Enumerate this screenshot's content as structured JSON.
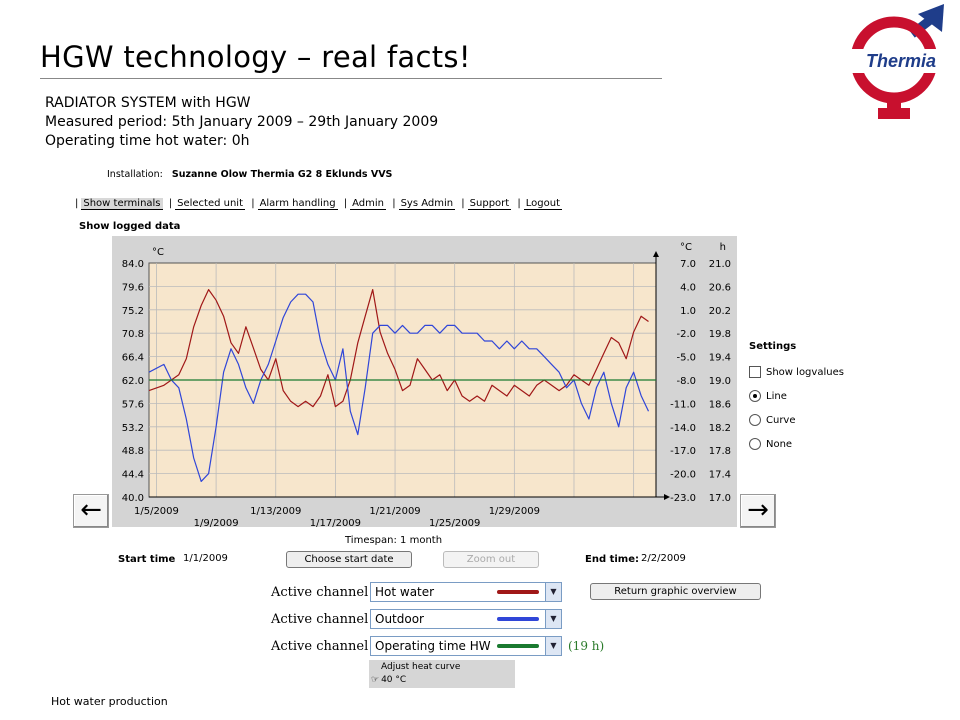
{
  "title": "HGW technology – real facts!",
  "subtitle": [
    "RADIATOR SYSTEM with HGW",
    "Measured period: 5th January 2009 – 29th January 2009",
    "Operating time hot water: 0h"
  ],
  "logo": {
    "text": "Thermia",
    "colors": {
      "ring": "#c8102e",
      "arrow": "#1f3d8a"
    }
  },
  "installation": {
    "label": "Installation:",
    "value": "Suzanne Olow Thermia G2 8 Eklunds VVS"
  },
  "nav": [
    "Show terminals",
    "Selected unit",
    "Alarm handling",
    "Admin",
    "Sys Admin",
    "Support",
    "Logout"
  ],
  "show_logged_label": "Show logged data",
  "settings": {
    "header": "Settings",
    "show_logvalues": "Show logvalues",
    "options": [
      "Line",
      "Curve",
      "None"
    ],
    "selected": "Line"
  },
  "timespan": "Timespan: 1 month",
  "start_time": {
    "label": "Start time",
    "value": "1/1/2009",
    "button": "Choose start date"
  },
  "zoom_out": "Zoom out",
  "end_time": {
    "label": "End time:",
    "value": "2/2/2009"
  },
  "return_button": "Return graphic overview",
  "channels": [
    {
      "label": "Active channel : ",
      "value": "Hot water",
      "color": "#a01818"
    },
    {
      "label": "Active channel : ",
      "value": "Outdoor",
      "color": "#3046d8"
    },
    {
      "label": "Active channel : ",
      "value": "Operating time HW",
      "color": "#1a7a30"
    }
  ],
  "hours_note": "(19 h)",
  "heat_curve": {
    "label": "Adjust heat curve",
    "value": "40 °C"
  },
  "footer": "Hot water production",
  "chart_data": {
    "type": "line",
    "x_tick_labels_upper": [
      "1/5/2009",
      "1/13/2009",
      "1/21/2009",
      "1/29/2009"
    ],
    "x_tick_labels_lower": [
      "1/9/2009",
      "1/17/2009",
      "1/25/2009"
    ],
    "x_range": [
      0,
      34
    ],
    "left_axis": {
      "unit": "°C",
      "ticks": [
        "84.0",
        "79.6",
        "75.2",
        "70.8",
        "66.4",
        "62.0",
        "57.6",
        "53.2",
        "48.8",
        "44.4",
        "40.0"
      ],
      "ylim": [
        40.0,
        84.0
      ]
    },
    "right_axis_1": {
      "unit": "°C",
      "ticks": [
        "7.0",
        "4.0",
        "1.0",
        "-2.0",
        "-5.0",
        "-8.0",
        "-11.0",
        "-14.0",
        "-17.0",
        "-20.0",
        "-23.0"
      ],
      "ylim": [
        -23.0,
        7.0
      ]
    },
    "right_axis_2": {
      "unit": "h",
      "ticks": [
        "21.0",
        "20.6",
        "20.2",
        "19.8",
        "19.4",
        "19.0",
        "18.6",
        "18.2",
        "17.8",
        "17.4",
        "17.0"
      ],
      "ylim": [
        17.0,
        21.0
      ]
    },
    "grid": true,
    "series": [
      {
        "name": "Hot water",
        "axis": "left",
        "color": "#a01818",
        "x": [
          0,
          1,
          2,
          2.5,
          3,
          3.5,
          4,
          4.5,
          5,
          5.5,
          6,
          6.5,
          7,
          7.5,
          8,
          8.5,
          9,
          9.5,
          10,
          10.5,
          11,
          11.5,
          12,
          12.5,
          13,
          13.5,
          14,
          14.5,
          15,
          15.5,
          16,
          16.5,
          17,
          17.5,
          18,
          18.5,
          19,
          19.5,
          20,
          20.5,
          21,
          21.5,
          22,
          22.5,
          23,
          23.5,
          24,
          24.5,
          25,
          25.5,
          26,
          26.5,
          27,
          27.5,
          28,
          28.5,
          29,
          29.5,
          30,
          30.5,
          31,
          31.5,
          32,
          32.5,
          33,
          33.5
        ],
        "y": [
          60,
          61,
          63,
          66,
          72,
          76,
          79,
          77,
          74,
          69,
          67,
          72,
          68,
          64,
          62,
          66,
          60,
          58,
          57,
          58,
          57,
          59,
          63,
          57,
          58,
          62,
          69,
          74,
          79,
          71,
          67,
          64,
          60,
          61,
          66,
          64,
          62,
          63,
          60,
          62,
          59,
          58,
          59,
          58,
          61,
          60,
          59,
          61,
          60,
          59,
          61,
          62,
          61,
          60,
          61,
          63,
          62,
          61,
          64,
          67,
          70,
          69,
          66,
          71,
          74,
          73
        ]
      },
      {
        "name": "Outdoor",
        "axis": "right_axis_1",
        "color": "#3046d8",
        "x": [
          0,
          1,
          1.5,
          2,
          2.5,
          3,
          3.5,
          4,
          4.5,
          5,
          5.5,
          6,
          6.5,
          7,
          7.5,
          8,
          8.5,
          9,
          9.5,
          10,
          10.5,
          11,
          11.5,
          12,
          12.5,
          13,
          13.5,
          14,
          14.5,
          15,
          15.5,
          16,
          16.5,
          17,
          17.5,
          18,
          18.5,
          19,
          19.5,
          20,
          20.5,
          21,
          21.5,
          22,
          22.5,
          23,
          23.5,
          24,
          24.5,
          25,
          25.5,
          26,
          26.5,
          27,
          27.5,
          28,
          28.5,
          29,
          29.5,
          30,
          30.5,
          31,
          31.5,
          32,
          32.5,
          33,
          33.5
        ],
        "y": [
          -7,
          -6,
          -8,
          -9,
          -13,
          -18,
          -21,
          -20,
          -14,
          -7,
          -4,
          -6,
          -9,
          -11,
          -8,
          -6,
          -3,
          0,
          2,
          3,
          3,
          2,
          -3,
          -6,
          -8,
          -4,
          -12,
          -15,
          -9,
          -2,
          -1,
          -1,
          -2,
          -1,
          -2,
          -2,
          -1,
          -1,
          -2,
          -1,
          -1,
          -2,
          -2,
          -2,
          -3,
          -3,
          -4,
          -3,
          -4,
          -3,
          -4,
          -4,
          -5,
          -6,
          -7,
          -9,
          -8,
          -11,
          -13,
          -9,
          -7,
          -11,
          -14,
          -9,
          -7,
          -10,
          -12
        ]
      },
      {
        "name": "Operating time HW",
        "axis": "right_axis_2",
        "color": "#1a7a30",
        "x": [
          0,
          34
        ],
        "y": [
          19.0,
          19.0
        ]
      }
    ]
  }
}
